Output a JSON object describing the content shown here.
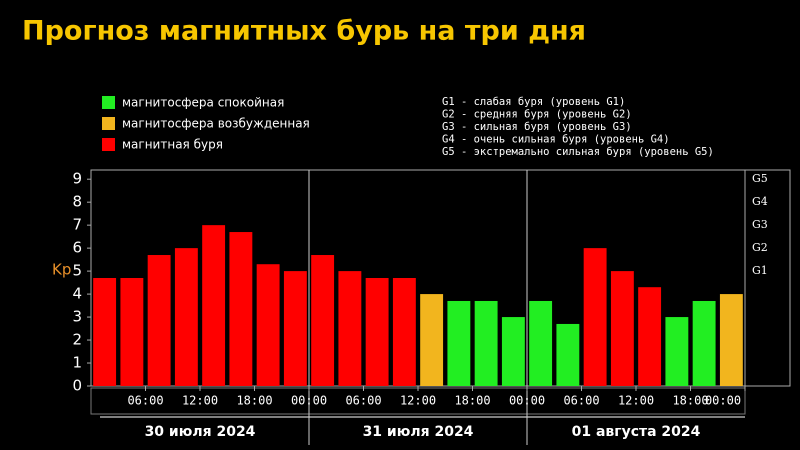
{
  "chart_data": {
    "type": "bar",
    "title": "Прогноз магнитных бурь на три дня",
    "ylabel": "Kp",
    "categories": [
      null,
      null,
      null,
      null,
      null,
      null,
      null,
      null,
      null,
      null,
      null,
      null,
      null,
      null,
      null,
      null,
      null,
      null,
      null,
      null,
      null,
      null,
      null,
      null
    ],
    "values": [
      4.7,
      4.7,
      5.7,
      6.0,
      7.0,
      6.7,
      5.3,
      5.0,
      5.7,
      5.0,
      4.7,
      4.7,
      4.0,
      3.7,
      3.7,
      3.0,
      3.7,
      2.7,
      6.0,
      5.0,
      4.3,
      3.0,
      3.7,
      4.0
    ],
    "colors": [
      "#ff0000",
      "#ff0000",
      "#ff0000",
      "#ff0000",
      "#ff0000",
      "#ff0000",
      "#ff0000",
      "#ff0000",
      "#ff0000",
      "#ff0000",
      "#ff0000",
      "#ff0000",
      "#f2b51e",
      "#22ee22",
      "#22ee22",
      "#22ee22",
      "#22ee22",
      "#22ee22",
      "#ff0000",
      "#ff0000",
      "#ff0000",
      "#22ee22",
      "#22ee22",
      "#f2b51e"
    ],
    "legend": [
      {
        "name": "магнитосфера спокойная",
        "color": "#22ee22"
      },
      {
        "name": "магнитосфера возбужденная",
        "color": "#f2b51e"
      },
      {
        "name": "магнитная буря",
        "color": "#ff0000"
      }
    ],
    "g_scale": [
      "G1 - слабая буря (уровень G1)",
      "G2 - средняя буря (уровень G2)",
      "G3 - сильная буря (уровень G3)",
      "G4 - очень сильная буря (уровень G4)",
      "G5 - экстремально сильная буря (уровень G5)"
    ],
    "ylim": [
      0,
      9.4
    ],
    "yticks": [
      0,
      1,
      2,
      3,
      4,
      5,
      6,
      7,
      8,
      9
    ],
    "y2lim": [
      0,
      9.4
    ],
    "y2ticks": [
      {
        "value": 9,
        "label": "G5"
      },
      {
        "value": 8,
        "label": "G4"
      },
      {
        "value": 7,
        "label": "G3"
      },
      {
        "value": 6,
        "label": "G2"
      },
      {
        "value": 5,
        "label": "G1"
      }
    ],
    "xlim": [
      0,
      24
    ],
    "xticks": [
      {
        "value": 2,
        "label": "06:00"
      },
      {
        "value": 4,
        "label": "12:00"
      },
      {
        "value": 6,
        "label": "18:00"
      },
      {
        "value": 8,
        "label": "00:00"
      },
      {
        "value": 10,
        "label": "06:00"
      },
      {
        "value": 12,
        "label": "12:00"
      },
      {
        "value": 14,
        "label": "18:00"
      },
      {
        "value": 16,
        "label": "00:00"
      },
      {
        "value": 18,
        "label": "06:00"
      },
      {
        "value": 20,
        "label": "12:00"
      },
      {
        "value": 22,
        "label": "18:00"
      },
      {
        "value": 24,
        "label": "00:00"
      }
    ],
    "day_labels": [
      "30 июля 2024",
      "31 июля 2024",
      "01 августа 2024"
    ]
  }
}
